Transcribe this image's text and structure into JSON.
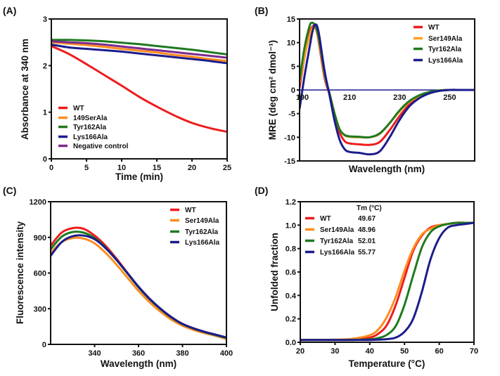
{
  "chart_data": [
    {
      "panel": "(A)",
      "type": "line",
      "xlabel": "Time (min)",
      "ylabel": "Absorbance at 340 nm",
      "xlim": [
        0,
        25
      ],
      "ylim": [
        0,
        3
      ],
      "xticks": [
        0,
        5,
        10,
        15,
        20,
        25
      ],
      "yticks": [
        0,
        1,
        2,
        3
      ],
      "grid": false,
      "legend_position": "bottom-left",
      "x": [
        0,
        2.5,
        5,
        7.5,
        10,
        12.5,
        15,
        17.5,
        20,
        22.5,
        25
      ],
      "series": [
        {
          "name": "WT",
          "color": "#ee1c1c",
          "values": [
            2.42,
            2.25,
            2.03,
            1.8,
            1.57,
            1.33,
            1.12,
            0.93,
            0.77,
            0.66,
            0.58
          ]
        },
        {
          "name": "149SerAla",
          "color": "#ff8c1f",
          "values": [
            2.5,
            2.47,
            2.44,
            2.4,
            2.36,
            2.32,
            2.28,
            2.23,
            2.19,
            2.14,
            2.1
          ]
        },
        {
          "name": "Tyr162Ala",
          "color": "#1f7a1f",
          "values": [
            2.55,
            2.55,
            2.54,
            2.52,
            2.49,
            2.46,
            2.42,
            2.38,
            2.34,
            2.29,
            2.24
          ]
        },
        {
          "name": "Lys166Ala",
          "color": "#1c1c8c",
          "values": [
            2.45,
            2.39,
            2.36,
            2.33,
            2.3,
            2.26,
            2.22,
            2.18,
            2.14,
            2.1,
            2.05
          ]
        },
        {
          "name": "Negative control",
          "color": "#7b2a8e",
          "values": [
            2.52,
            2.5,
            2.48,
            2.45,
            2.41,
            2.37,
            2.33,
            2.29,
            2.25,
            2.21,
            2.17
          ]
        }
      ]
    },
    {
      "panel": "(B)",
      "type": "line",
      "xlabel": "Wavelength (nm)",
      "ylabel": "MRE (deg cm² dmol⁻¹)",
      "xlim": [
        190,
        260
      ],
      "ylim": [
        -15,
        15
      ],
      "xticks": [
        190,
        210,
        230,
        250
      ],
      "yticks": [
        -15,
        -10,
        -5,
        0,
        5,
        10,
        15
      ],
      "grid": false,
      "legend_position": "top-right",
      "x": [
        190,
        192,
        194,
        195,
        196,
        197,
        198,
        200,
        202,
        204,
        206,
        208,
        210,
        214,
        218,
        222,
        226,
        230,
        234,
        238,
        242,
        246,
        250,
        255,
        260
      ],
      "series": [
        {
          "name": "WT",
          "color": "#ee1c1c",
          "values": [
            0.5,
            7,
            12,
            13.3,
            13.5,
            12,
            9,
            2.5,
            -1,
            -5.5,
            -9,
            -10.8,
            -11.3,
            -11.5,
            -11.6,
            -11,
            -8.5,
            -5.5,
            -3,
            -1.5,
            -0.6,
            -0.15,
            0,
            0,
            0
          ]
        },
        {
          "name": "Ser149Ala",
          "color": "#ffa020",
          "values": [
            1.5,
            7,
            11.5,
            13,
            13.3,
            12,
            9.5,
            3,
            -0.8,
            -5,
            -8.3,
            -9.6,
            -9.9,
            -10,
            -10,
            -9.3,
            -7,
            -4.5,
            -2.5,
            -1.2,
            -0.5,
            -0.1,
            0,
            0,
            0
          ]
        },
        {
          "name": "Tyr162Ala",
          "color": "#1f7a1f",
          "values": [
            2,
            9,
            13.5,
            14.2,
            13.8,
            12.5,
            10,
            3.5,
            -0.8,
            -5,
            -8.3,
            -9.5,
            -9.8,
            -9.9,
            -10,
            -9.2,
            -7,
            -4.3,
            -2.3,
            -1.1,
            -0.4,
            -0.1,
            0,
            0,
            0
          ]
        },
        {
          "name": "Lys166Ala",
          "color": "#1c1c8c",
          "values": [
            -4,
            3,
            9,
            12,
            13.7,
            13.5,
            11,
            4,
            -1.2,
            -6.5,
            -10.5,
            -12.5,
            -13.1,
            -13.3,
            -13.6,
            -13,
            -10,
            -6.3,
            -3.4,
            -1.7,
            -0.7,
            -0.2,
            0,
            0,
            0
          ]
        }
      ]
    },
    {
      "panel": "(C)",
      "type": "line",
      "xlabel": "Wavelength (nm)",
      "ylabel": "Fluorescence intensity",
      "xlim": [
        320,
        400
      ],
      "ylim": [
        0,
        1200
      ],
      "xticks": [
        340,
        360,
        380,
        400
      ],
      "yticks": [
        0,
        300,
        600,
        900,
        1200
      ],
      "grid": false,
      "legend_position": "top-right",
      "x": [
        320,
        325,
        330,
        335,
        340,
        345,
        350,
        355,
        360,
        365,
        370,
        375,
        380,
        385,
        390,
        395,
        400
      ],
      "series": [
        {
          "name": "WT",
          "color": "#ee1c1c",
          "values": [
            830,
            940,
            978,
            972,
            915,
            830,
            720,
            600,
            485,
            385,
            300,
            228,
            172,
            135,
            105,
            80,
            55
          ]
        },
        {
          "name": "Ser149Ala",
          "color": "#ff8c1f",
          "values": [
            770,
            860,
            895,
            890,
            850,
            770,
            670,
            560,
            450,
            355,
            275,
            207,
            157,
            122,
            95,
            72,
            45
          ]
        },
        {
          "name": "Tyr162Ala",
          "color": "#1f7a1f",
          "values": [
            800,
            905,
            945,
            940,
            895,
            815,
            710,
            595,
            480,
            380,
            297,
            225,
            170,
            133,
            103,
            78,
            55
          ]
        },
        {
          "name": "Lys166Ala",
          "color": "#1c1c8c",
          "values": [
            745,
            860,
            910,
            915,
            885,
            810,
            710,
            598,
            485,
            385,
            300,
            228,
            172,
            135,
            106,
            82,
            58
          ]
        }
      ]
    },
    {
      "panel": "(D)",
      "type": "line",
      "xlabel": "Temperature (°C)",
      "ylabel": "Unfolded fraction",
      "xlim": [
        20,
        70
      ],
      "ylim": [
        0,
        1.2
      ],
      "xticks": [
        20,
        30,
        40,
        50,
        60,
        70
      ],
      "yticks": [
        0,
        0.2,
        0.4,
        0.6,
        0.8,
        1.0,
        1.2
      ],
      "grid": false,
      "legend_position": "top-left",
      "legend_header": "Tm (°C)",
      "x": [
        20,
        30,
        35,
        40,
        42.5,
        45,
        47.5,
        50,
        52.5,
        55,
        57.5,
        60,
        62.5,
        65,
        67.5,
        70
      ],
      "series": [
        {
          "name": "WT",
          "tm": "49.67",
          "color": "#ee1c1c",
          "values": [
            0.02,
            0.02,
            0.02,
            0.04,
            0.074,
            0.15,
            0.32,
            0.55,
            0.78,
            0.91,
            0.98,
            1.0,
            1.01,
            1.02,
            1.02,
            1.02
          ]
        },
        {
          "name": "Ser149Ala",
          "tm": "48.96",
          "color": "#ff8c1f",
          "values": [
            0.02,
            0.022,
            0.03,
            0.06,
            0.11,
            0.22,
            0.39,
            0.61,
            0.8,
            0.92,
            0.97,
            1.0,
            1.01,
            1.02,
            1.02,
            1.02
          ]
        },
        {
          "name": "Tyr162Ala",
          "tm": "52.01",
          "color": "#1f7a1f",
          "values": [
            0.02,
            0.02,
            0.02,
            0.025,
            0.036,
            0.065,
            0.14,
            0.32,
            0.57,
            0.81,
            0.94,
            0.99,
            1.01,
            1.02,
            1.02,
            1.02
          ]
        },
        {
          "name": "Lys166Ala",
          "tm": "55.77",
          "color": "#1c1c8c",
          "values": [
            0.02,
            0.02,
            0.02,
            0.02,
            0.022,
            0.027,
            0.04,
            0.09,
            0.2,
            0.43,
            0.71,
            0.89,
            0.98,
            1.0,
            1.01,
            1.02
          ]
        }
      ]
    }
  ]
}
